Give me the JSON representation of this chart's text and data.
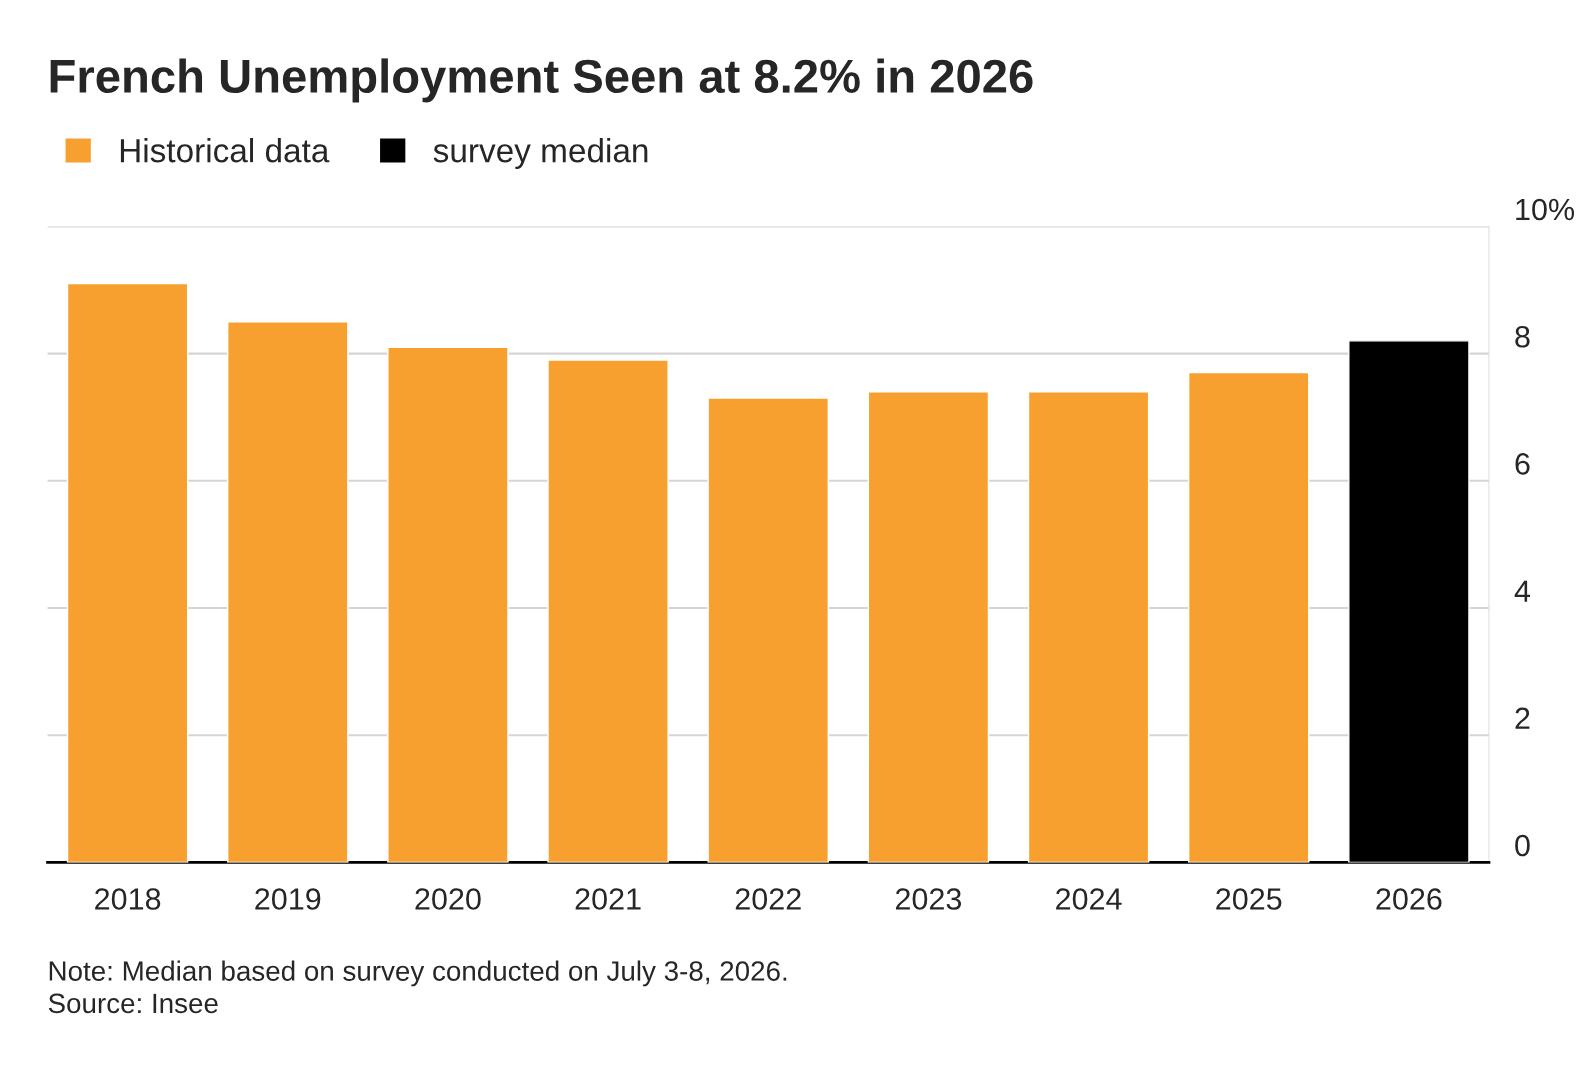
{
  "chart_data": {
    "type": "bar",
    "title": "French Unemployment Seen at 8.2% in 2026",
    "categories": [
      "2018",
      "2019",
      "2020",
      "2021",
      "2022",
      "2023",
      "2024",
      "2025",
      "2026"
    ],
    "series": [
      {
        "name": "Historical data",
        "color": "#f7a030",
        "values": [
          9.1,
          8.5,
          8.1,
          7.9,
          7.3,
          7.4,
          7.4,
          7.7,
          null
        ]
      },
      {
        "name": "survey median",
        "color": "#000000",
        "values": [
          null,
          null,
          null,
          null,
          null,
          null,
          null,
          null,
          8.2
        ]
      }
    ],
    "ylim": [
      0,
      10
    ],
    "yticks": [
      0,
      2,
      4,
      6,
      8,
      {
        "value": 10,
        "label": "10%"
      }
    ],
    "grid": "y",
    "legend": "top left",
    "annotations": [
      "Note: Median based on survey conducted on July 3-8, 2026.",
      "Source: Insee"
    ]
  }
}
